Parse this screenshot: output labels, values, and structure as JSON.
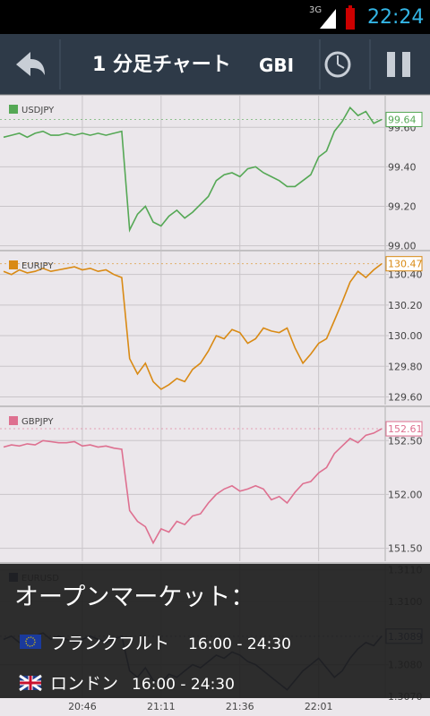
{
  "status_bar": {
    "network": "3G",
    "time": "22:24"
  },
  "toolbar": {
    "title": "1 分足チャート",
    "tab": "GBI"
  },
  "x_axis": {
    "categories": [
      null,
      null,
      null,
      null,
      null,
      null,
      null,
      null,
      null,
      null,
      "20:46",
      null,
      null,
      null,
      null,
      null,
      null,
      null,
      null,
      null,
      "21:11",
      null,
      null,
      null,
      null,
      null,
      null,
      null,
      null,
      null,
      "21:36",
      null,
      null,
      null,
      null,
      null,
      null,
      null,
      null,
      null,
      "22:01",
      null,
      null,
      null,
      null,
      null,
      null,
      null,
      null
    ]
  },
  "charts": [
    {
      "type": "line",
      "name": "USDJPY",
      "color": "#55a855",
      "last": 99.64,
      "ylim": [
        98.98,
        99.76
      ],
      "yticks": [
        {
          "value": 99.0,
          "label": "99.00"
        },
        {
          "value": 99.2,
          "label": "99.20"
        },
        {
          "value": 99.4,
          "label": "99.40"
        },
        {
          "value": 99.6,
          "label": "99.60"
        }
      ],
      "values": [
        99.55,
        99.56,
        99.57,
        99.55,
        99.57,
        99.58,
        99.56,
        99.56,
        99.57,
        99.56,
        99.57,
        99.56,
        99.57,
        99.56,
        99.57,
        99.58,
        99.08,
        99.16,
        99.2,
        99.12,
        99.1,
        99.15,
        99.18,
        99.14,
        99.17,
        99.21,
        99.25,
        99.33,
        99.36,
        99.37,
        99.35,
        99.39,
        99.4,
        99.37,
        99.35,
        99.33,
        99.3,
        99.3,
        99.33,
        99.36,
        99.45,
        99.48,
        99.58,
        99.63,
        99.7,
        99.66,
        99.68,
        99.62,
        99.64
      ]
    },
    {
      "type": "line",
      "name": "EURJPY",
      "color": "#d98a14",
      "last": 130.47,
      "ylim": [
        129.55,
        130.55
      ],
      "yticks": [
        {
          "value": 129.6,
          "label": "129.60"
        },
        {
          "value": 129.8,
          "label": "129.80"
        },
        {
          "value": 130.0,
          "label": "130.00"
        },
        {
          "value": 130.2,
          "label": "130.20"
        },
        {
          "value": 130.4,
          "label": "130.40"
        }
      ],
      "values": [
        130.42,
        130.4,
        130.43,
        130.41,
        130.42,
        130.44,
        130.42,
        130.43,
        130.44,
        130.45,
        130.43,
        130.44,
        130.42,
        130.43,
        130.4,
        130.38,
        129.85,
        129.75,
        129.82,
        129.7,
        129.65,
        129.68,
        129.72,
        129.7,
        129.78,
        129.82,
        129.9,
        130.0,
        129.98,
        130.04,
        130.02,
        129.95,
        129.98,
        130.05,
        130.03,
        130.02,
        130.05,
        129.92,
        129.82,
        129.88,
        129.95,
        129.98,
        130.1,
        130.22,
        130.35,
        130.42,
        130.38,
        130.43,
        130.47
      ]
    },
    {
      "type": "line",
      "name": "GBPJPY",
      "color": "#de7090",
      "last": 152.61,
      "ylim": [
        151.38,
        152.81
      ],
      "yticks": [
        {
          "value": 151.5,
          "label": "151.50"
        },
        {
          "value": 152,
          "label": "152.00"
        },
        {
          "value": 152.5,
          "label": "152.50"
        }
      ],
      "values": [
        152.44,
        152.46,
        152.45,
        152.47,
        152.46,
        152.5,
        152.49,
        152.48,
        152.48,
        152.49,
        152.45,
        152.46,
        152.44,
        152.45,
        152.43,
        152.42,
        151.85,
        151.75,
        151.7,
        151.55,
        151.68,
        151.65,
        151.75,
        151.72,
        151.8,
        151.82,
        151.92,
        152.0,
        152.05,
        152.08,
        152.03,
        152.05,
        152.08,
        152.05,
        151.95,
        151.98,
        151.92,
        152.02,
        152.1,
        152.12,
        152.2,
        152.25,
        152.38,
        152.45,
        152.52,
        152.48,
        152.55,
        152.57,
        152.61
      ]
    },
    {
      "type": "line",
      "name": "EURUSD",
      "color": "#2c3e78",
      "last": 1.3089,
      "ylim": [
        1.30694,
        1.31119
      ],
      "yticks": [
        {
          "value": 1.307,
          "label": "1.3070"
        },
        {
          "value": 1.308,
          "label": "1.3080"
        },
        {
          "value": 1.31,
          "label": "1.3100"
        },
        {
          "value": 1.311,
          "label": "1.3110"
        }
      ],
      "values": [
        1.3088,
        1.3089,
        1.3087,
        1.3088,
        1.3089,
        1.309,
        1.3088,
        1.3089,
        1.3088,
        1.3087,
        1.3088,
        1.3089,
        1.3088,
        1.3087,
        1.3088,
        1.3089,
        1.3078,
        1.3076,
        1.3079,
        1.3075,
        1.3074,
        1.3077,
        1.3076,
        1.3078,
        1.308,
        1.3079,
        1.3081,
        1.3083,
        1.3082,
        1.3084,
        1.3083,
        1.3081,
        1.308,
        1.3078,
        1.3076,
        1.3074,
        1.3072,
        1.3075,
        1.3078,
        1.308,
        1.3082,
        1.3079,
        1.3076,
        1.3078,
        1.3082,
        1.3085,
        1.3087,
        1.3086,
        1.3089
      ]
    }
  ],
  "overlay": {
    "title": "オープンマーケット：",
    "markets": [
      {
        "name": "フランクフルト",
        "hours": "16:00 - 24:30"
      },
      {
        "name": "ロンドン",
        "hours": "16:00 - 24:30"
      }
    ]
  }
}
